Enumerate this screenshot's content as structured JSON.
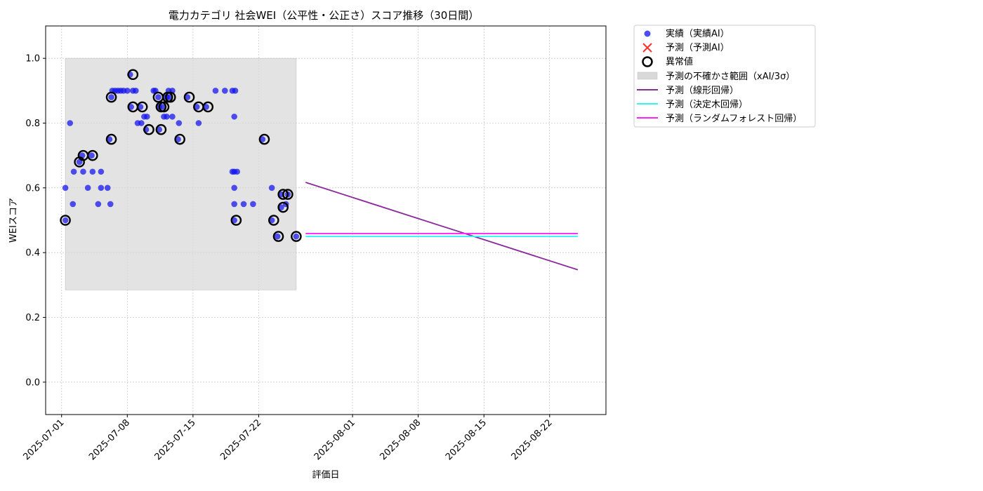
{
  "chart_data": {
    "type": "scatter",
    "title": "電力カテゴリ 社会WEI（公平性・公正さ）スコア推移（30日間）",
    "xlabel": "評価日",
    "ylabel": "WEIスコア",
    "ylim": [
      -0.1,
      1.1
    ],
    "yticks": [
      0.0,
      0.2,
      0.4,
      0.6,
      0.8,
      1.0
    ],
    "ytick_labels": [
      "0.0",
      "0.2",
      "0.4",
      "0.6",
      "0.8",
      "1.0"
    ],
    "xlim_days": [
      -1.7,
      58
    ],
    "x_origin_date": "2025-07-01",
    "xticks": [
      {
        "day": 0,
        "label": "2025-07-01"
      },
      {
        "day": 7,
        "label": "2025-07-08"
      },
      {
        "day": 14,
        "label": "2025-07-15"
      },
      {
        "day": 21,
        "label": "2025-07-22"
      },
      {
        "day": 31,
        "label": "2025-08-01"
      },
      {
        "day": 38,
        "label": "2025-08-08"
      },
      {
        "day": 45,
        "label": "2025-08-15"
      },
      {
        "day": 52,
        "label": "2025-08-22"
      }
    ],
    "grid": true,
    "legend_position": "outside-top-right",
    "legend": {
      "actual": "実績（実績AI）",
      "predicted": "予測（予測AI）",
      "anomaly": "異常値",
      "uncertainty": "予測の不確かさ範囲（xAI/3σ）",
      "linear": "予測（線形回帰）",
      "tree": "予測（決定木回帰）",
      "forest": "予測（ランダムフォレスト回帰）"
    },
    "colors": {
      "actual": "#1010ee",
      "predicted": "#ff3030",
      "anomaly": "#000000",
      "uncertainty": "#d9d9d9",
      "linear": "#8b2a9b",
      "tree": "#33f5f5",
      "forest": "#ff22ff",
      "grid": "#c8c8c8"
    },
    "uncertainty_band": {
      "x_start": 0.4,
      "x_end": 25,
      "y_low": 0.285,
      "y_high": 1.0
    },
    "actual": [
      [
        0.4,
        0.5
      ],
      [
        0.4,
        0.6
      ],
      [
        0.9,
        0.8
      ],
      [
        1.2,
        0.55
      ],
      [
        1.3,
        0.65
      ],
      [
        1.9,
        0.68
      ],
      [
        2.2,
        0.7
      ],
      [
        2.3,
        0.65
      ],
      [
        2.8,
        0.6
      ],
      [
        3.2,
        0.7
      ],
      [
        3.3,
        0.65
      ],
      [
        3.9,
        0.55
      ],
      [
        4.2,
        0.65
      ],
      [
        4.2,
        0.6
      ],
      [
        4.9,
        0.6
      ],
      [
        5.2,
        0.55
      ],
      [
        5.3,
        0.88
      ],
      [
        5.1,
        0.75
      ],
      [
        5.4,
        0.9
      ],
      [
        5.7,
        0.9
      ],
      [
        6.0,
        0.9
      ],
      [
        6.3,
        0.9
      ],
      [
        6.6,
        0.9
      ],
      [
        7.0,
        0.9
      ],
      [
        7.6,
        0.9
      ],
      [
        7.9,
        0.9
      ],
      [
        7.3,
        0.95
      ],
      [
        7.4,
        0.85
      ],
      [
        8.4,
        0.85
      ],
      [
        8.1,
        0.8
      ],
      [
        8.5,
        0.8
      ],
      [
        8.8,
        0.82
      ],
      [
        9.1,
        0.82
      ],
      [
        9.0,
        0.78
      ],
      [
        9.8,
        0.9
      ],
      [
        10.0,
        0.9
      ],
      [
        10.3,
        0.88
      ],
      [
        10.4,
        0.85
      ],
      [
        10.4,
        0.78
      ],
      [
        10.7,
        0.85
      ],
      [
        10.9,
        0.82
      ],
      [
        11.2,
        0.82
      ],
      [
        11.2,
        0.88
      ],
      [
        11.4,
        0.9
      ],
      [
        11.5,
        0.88
      ],
      [
        11.8,
        0.9
      ],
      [
        11.8,
        0.82
      ],
      [
        12.4,
        0.75
      ],
      [
        12.5,
        0.8
      ],
      [
        13.4,
        0.88
      ],
      [
        14.4,
        0.85
      ],
      [
        14.6,
        0.8
      ],
      [
        15.4,
        0.85
      ],
      [
        16.4,
        0.9
      ],
      [
        17.4,
        0.9
      ],
      [
        18.2,
        0.9
      ],
      [
        18.5,
        0.9
      ],
      [
        18.4,
        0.82
      ],
      [
        18.2,
        0.65
      ],
      [
        18.4,
        0.65
      ],
      [
        18.7,
        0.65
      ],
      [
        18.4,
        0.6
      ],
      [
        18.4,
        0.55
      ],
      [
        18.4,
        0.5
      ],
      [
        19.4,
        0.55
      ],
      [
        20.4,
        0.55
      ],
      [
        21.4,
        0.75
      ],
      [
        22.4,
        0.6
      ],
      [
        22.4,
        0.5
      ],
      [
        23.0,
        0.45
      ],
      [
        23.4,
        0.58
      ],
      [
        23.4,
        0.54
      ],
      [
        23.9,
        0.55
      ],
      [
        24.1,
        0.58
      ],
      [
        25.0,
        0.45
      ]
    ],
    "anomalies": [
      [
        0.4,
        0.5
      ],
      [
        1.9,
        0.68
      ],
      [
        2.3,
        0.7
      ],
      [
        3.3,
        0.7
      ],
      [
        5.3,
        0.75
      ],
      [
        5.3,
        0.88
      ],
      [
        7.6,
        0.95
      ],
      [
        7.6,
        0.85
      ],
      [
        8.6,
        0.85
      ],
      [
        9.3,
        0.78
      ],
      [
        10.3,
        0.88
      ],
      [
        10.6,
        0.85
      ],
      [
        10.6,
        0.78
      ],
      [
        10.9,
        0.85
      ],
      [
        11.3,
        0.88
      ],
      [
        11.6,
        0.88
      ],
      [
        12.6,
        0.75
      ],
      [
        13.6,
        0.88
      ],
      [
        14.6,
        0.85
      ],
      [
        15.6,
        0.85
      ],
      [
        18.6,
        0.5
      ],
      [
        21.6,
        0.75
      ],
      [
        22.6,
        0.5
      ],
      [
        23.1,
        0.45
      ],
      [
        23.6,
        0.58
      ],
      [
        23.6,
        0.54
      ],
      [
        24.1,
        0.58
      ],
      [
        25.0,
        0.45
      ]
    ],
    "predicted": [],
    "linear_line": {
      "x": [
        26,
        55
      ],
      "y": [
        0.617,
        0.347
      ]
    },
    "tree_line": {
      "x": [
        26,
        55
      ],
      "y": [
        0.45,
        0.45
      ]
    },
    "forest_line": {
      "x": [
        26,
        55
      ],
      "y": [
        0.459,
        0.459
      ]
    }
  }
}
